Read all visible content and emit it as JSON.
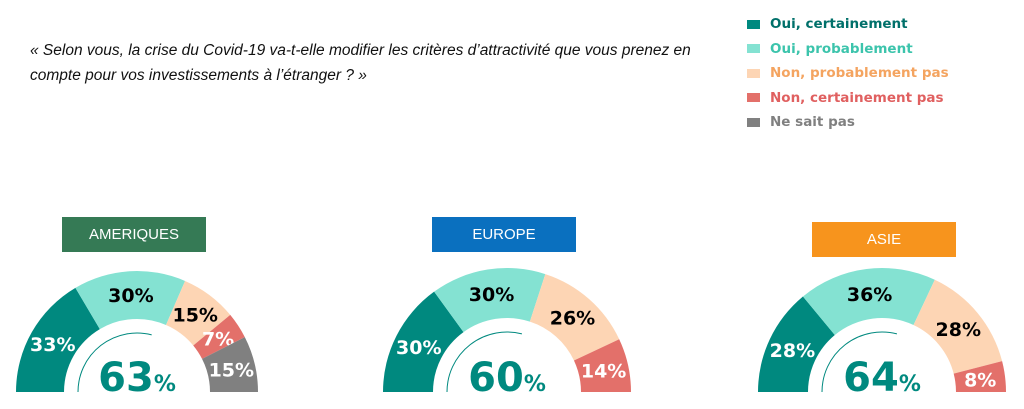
{
  "question": "« Selon vous, la crise du Covid-19 va-t-elle modifier les critères d’attractivité que vous prenez en compte pour vos investissements à l’étranger ? »",
  "chart_data": {
    "type": "pie",
    "subtype": "semi-donut",
    "legend": [
      {
        "label": "Oui, certainement",
        "color": "#00897f",
        "text_color": "#00706a"
      },
      {
        "label": "Oui, probablement",
        "color": "#84e2d2",
        "text_color": "#3cc4ac"
      },
      {
        "label": "Non, probablement pas",
        "color": "#fdd5b4",
        "text_color": "#f4a460"
      },
      {
        "label": "Non, certainement pas",
        "color": "#e3706a",
        "text_color": "#e06060"
      },
      {
        "label": "Ne sait pas",
        "color": "#808080",
        "text_color": "#808080"
      }
    ],
    "legend_position": "top-right",
    "charts": [
      {
        "title": "AMERIQUES",
        "title_color": "#357a55",
        "values": [
          33,
          30,
          15,
          7,
          15
        ],
        "labels": [
          "33%",
          "30%",
          "15%",
          "7%",
          "15%"
        ],
        "total": "63",
        "total_suffix": "%"
      },
      {
        "title": "EUROPE",
        "title_color": "#0a70bf",
        "values": [
          30,
          30,
          26,
          14,
          0
        ],
        "labels": [
          "30%",
          "30%",
          "26%",
          "14%",
          ""
        ],
        "total": "60",
        "total_suffix": "%"
      },
      {
        "title": "ASIE",
        "title_color": "#f7941d",
        "values": [
          28,
          36,
          28,
          8,
          0
        ],
        "labels": [
          "28%",
          "36%",
          "28%",
          "8%",
          ""
        ],
        "total": "64",
        "total_suffix": "%"
      }
    ]
  }
}
